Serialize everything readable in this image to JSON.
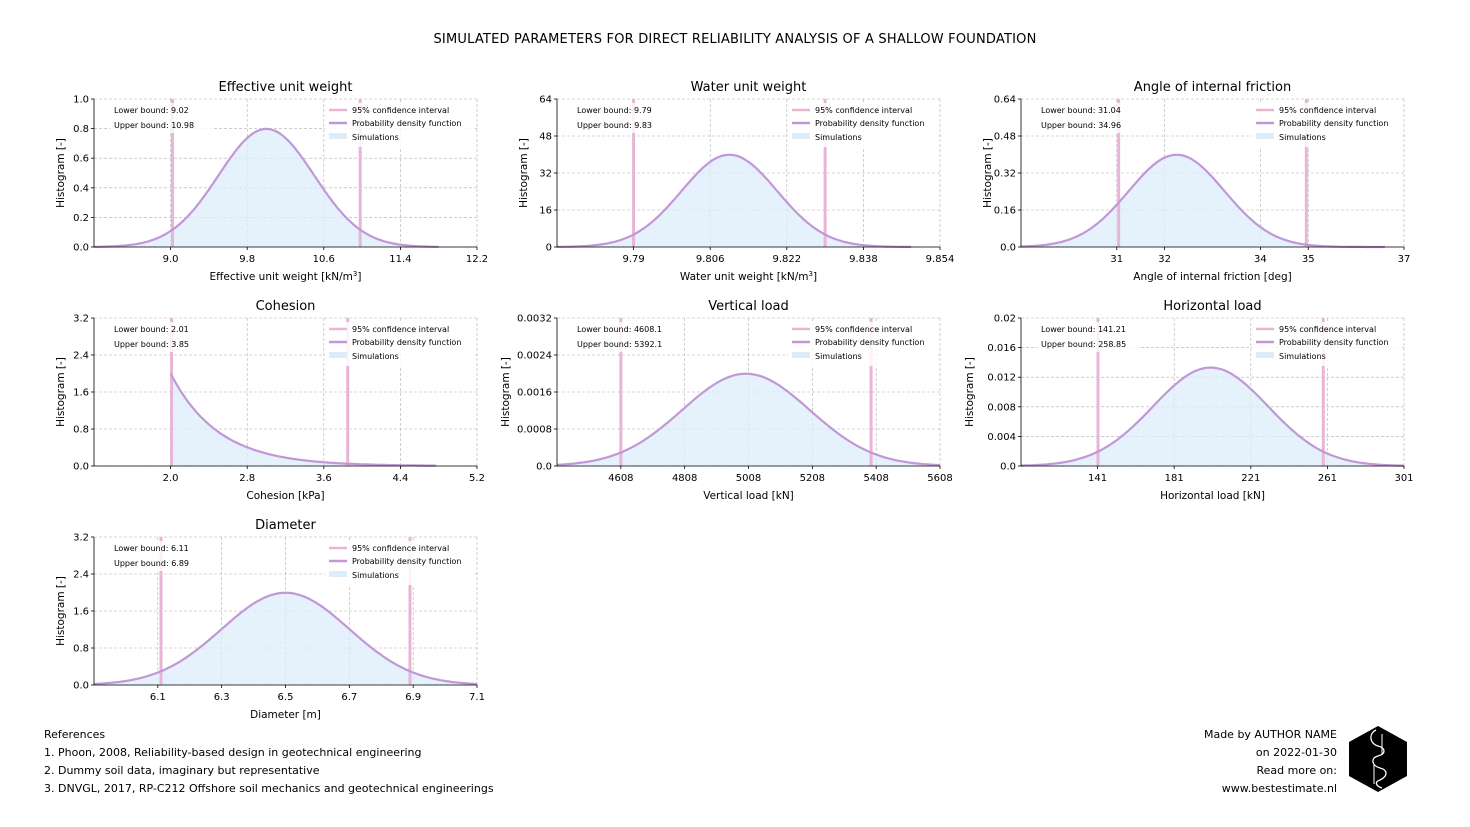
{
  "suptitle": "SIMULATED PARAMETERS FOR DIRECT RELIABILITY ANALYSIS OF A SHALLOW FOUNDATION",
  "colors": {
    "ci": "#e8b5d6",
    "pdf": "#c197d6",
    "hist": "#dcecf9",
    "grid": "#b0b0b0"
  },
  "legend": {
    "ci": "95% confidence interval",
    "pdf": "Probability density function",
    "sim": "Simulations"
  },
  "chart_data": [
    {
      "type": "area",
      "title": "Effective unit weight",
      "xlabel": "Effective unit weight [kN/m",
      "xlabel_sup": "3",
      "xlabel_tail": "]",
      "ylabel": "Histogram [-]",
      "dist": "normal",
      "mean": 10.0,
      "sd": 0.5,
      "xlim": [
        8.2,
        12.2
      ],
      "ylim": [
        0,
        1.0
      ],
      "xticks": [
        "9.0",
        "9.8",
        "10.6",
        "11.4",
        "12.2"
      ],
      "xtick_values": [
        9.0,
        9.8,
        10.6,
        11.4,
        12.2
      ],
      "yticks": [
        "0.0",
        "0.2",
        "0.4",
        "0.6",
        "0.8",
        "1.0"
      ],
      "ytick_values": [
        0,
        0.2,
        0.4,
        0.6,
        0.8,
        1.0
      ],
      "curve_range": [
        8.2,
        11.8
      ],
      "lower": 9.02,
      "upper": 10.98,
      "lower_label": "Lower bound: 9.02",
      "upper_label": "Upper bound: 10.98"
    },
    {
      "type": "area",
      "title": "Water unit weight",
      "xlabel": "Water unit weight [kN/m",
      "xlabel_sup": "3",
      "xlabel_tail": "]",
      "ylabel": "Histogram [-]",
      "dist": "normal",
      "mean": 9.81,
      "sd": 0.01,
      "xlim": [
        9.774,
        9.854
      ],
      "ylim": [
        0,
        64
      ],
      "xticks": [
        "9.79",
        "9.806",
        "9.822",
        "9.838",
        "9.854"
      ],
      "xtick_values": [
        9.79,
        9.806,
        9.822,
        9.838,
        9.854
      ],
      "yticks": [
        "0",
        "16",
        "32",
        "48",
        "64"
      ],
      "ytick_values": [
        0,
        16,
        32,
        48,
        64
      ],
      "curve_range": [
        9.774,
        9.848
      ],
      "lower": 9.79,
      "upper": 9.83,
      "lower_label": "Lower bound: 9.79",
      "upper_label": "Upper bound: 9.83"
    },
    {
      "type": "area",
      "title": "Angle of internal friction",
      "xlabel": "Angle of internal friction [deg]",
      "xlabel_sup": "",
      "xlabel_tail": "",
      "ylabel": "Histogram [-]",
      "dist": "normal",
      "mean": 32.25,
      "sd": 1.0,
      "xlim": [
        29.0,
        37.0
      ],
      "ylim": [
        0,
        0.64
      ],
      "xticks": [
        "31",
        "32",
        "34",
        "35",
        "37"
      ],
      "xtick_values": [
        31,
        32,
        34,
        35,
        37
      ],
      "yticks": [
        "0.0",
        "0.16",
        "0.32",
        "0.48",
        "0.64"
      ],
      "ytick_values": [
        0,
        0.16,
        0.32,
        0.48,
        0.64
      ],
      "curve_range": [
        29.0,
        36.6
      ],
      "lower": 31.04,
      "upper": 34.96,
      "lower_label": "Lower bound: 31.04",
      "upper_label": "Upper bound: 34.96"
    },
    {
      "type": "area",
      "title": "Cohesion",
      "xlabel": "Cohesion [kPa]",
      "xlabel_sup": "",
      "xlabel_tail": "",
      "ylabel": "Histogram [-]",
      "dist": "exponential",
      "start": 2.0,
      "rate": 2.0,
      "xlim": [
        1.2,
        5.2
      ],
      "ylim": [
        0,
        3.2
      ],
      "xticks": [
        "2.0",
        "2.8",
        "3.6",
        "4.4",
        "5.2"
      ],
      "xtick_values": [
        2.0,
        2.8,
        3.6,
        4.4,
        5.2
      ],
      "yticks": [
        "0.0",
        "0.8",
        "1.6",
        "2.4",
        "3.2"
      ],
      "ytick_values": [
        0,
        0.8,
        1.6,
        2.4,
        3.2
      ],
      "curve_range": [
        2.0,
        4.77
      ],
      "lower": 2.01,
      "upper": 3.85,
      "lower_label": "Lower bound: 2.01",
      "upper_label": "Upper bound: 3.85"
    },
    {
      "type": "area",
      "title": "Vertical load",
      "xlabel": "Vertical load [kN]",
      "xlabel_sup": "",
      "xlabel_tail": "",
      "ylabel": "Histogram [-]",
      "dist": "normal",
      "mean": 5000,
      "sd": 200,
      "xlim": [
        4408,
        5608
      ],
      "ylim": [
        0,
        0.0032
      ],
      "xticks": [
        "4608",
        "4808",
        "5008",
        "5208",
        "5408",
        "5608"
      ],
      "xtick_values": [
        4608,
        4808,
        5008,
        5208,
        5408,
        5608
      ],
      "yticks": [
        "0.0",
        "0.0008",
        "0.0016",
        "0.0024",
        "0.0032"
      ],
      "ytick_values": [
        0,
        0.0008,
        0.0016,
        0.0024,
        0.0032
      ],
      "curve_range": [
        4408,
        5608
      ],
      "lower": 4608.1,
      "upper": 5392.1,
      "lower_label": "Lower bound: 4608.1",
      "upper_label": "Upper bound: 5392.1"
    },
    {
      "type": "area",
      "title": "Horizontal load",
      "xlabel": "Horizontal load [kN]",
      "xlabel_sup": "",
      "xlabel_tail": "",
      "ylabel": "Histogram [-]",
      "dist": "normal",
      "mean": 200,
      "sd": 30,
      "xlim": [
        101,
        301
      ],
      "ylim": [
        0,
        0.02
      ],
      "xticks": [
        "141",
        "181",
        "221",
        "261",
        "301"
      ],
      "xtick_values": [
        141,
        181,
        221,
        261,
        301
      ],
      "yticks": [
        "0.0",
        "0.004",
        "0.008",
        "0.012",
        "0.016",
        "0.02"
      ],
      "ytick_values": [
        0,
        0.004,
        0.008,
        0.012,
        0.016,
        0.02
      ],
      "curve_range": [
        101,
        301
      ],
      "lower": 141.21,
      "upper": 258.85,
      "lower_label": "Lower bound: 141.21",
      "upper_label": "Upper bound: 258.85"
    },
    {
      "type": "area",
      "title": "Diameter",
      "xlabel": "Diameter [m]",
      "xlabel_sup": "",
      "xlabel_tail": "",
      "ylabel": "Histogram [-]",
      "dist": "normal",
      "mean": 6.5,
      "sd": 0.2,
      "xlim": [
        5.9,
        7.1
      ],
      "ylim": [
        0,
        3.2
      ],
      "xticks": [
        "6.1",
        "6.3",
        "6.5",
        "6.7",
        "6.9",
        "7.1"
      ],
      "xtick_values": [
        6.1,
        6.3,
        6.5,
        6.7,
        6.9,
        7.1
      ],
      "yticks": [
        "0.0",
        "0.8",
        "1.6",
        "2.4",
        "3.2"
      ],
      "ytick_values": [
        0,
        0.8,
        1.6,
        2.4,
        3.2
      ],
      "curve_range": [
        5.9,
        7.1
      ],
      "lower": 6.11,
      "upper": 6.89,
      "lower_label": "Lower bound: 6.11",
      "upper_label": "Upper bound: 6.89"
    }
  ],
  "references": {
    "heading": "References",
    "items": [
      "1. Phoon, 2008, Reliability-based design in geotechnical engineering",
      "2. Dummy soil data, imaginary but representative",
      "3. DNVGL, 2017, RP-C212 Offshore soil mechanics and geotechnical engineerings"
    ]
  },
  "credit": {
    "line1": "Made by AUTHOR NAME",
    "line2": "on 2022-01-30",
    "line3": "Read more on:",
    "line4": "www.bestestimate.nl"
  },
  "logo": {
    "icon": "hexagon-logo-icon"
  }
}
